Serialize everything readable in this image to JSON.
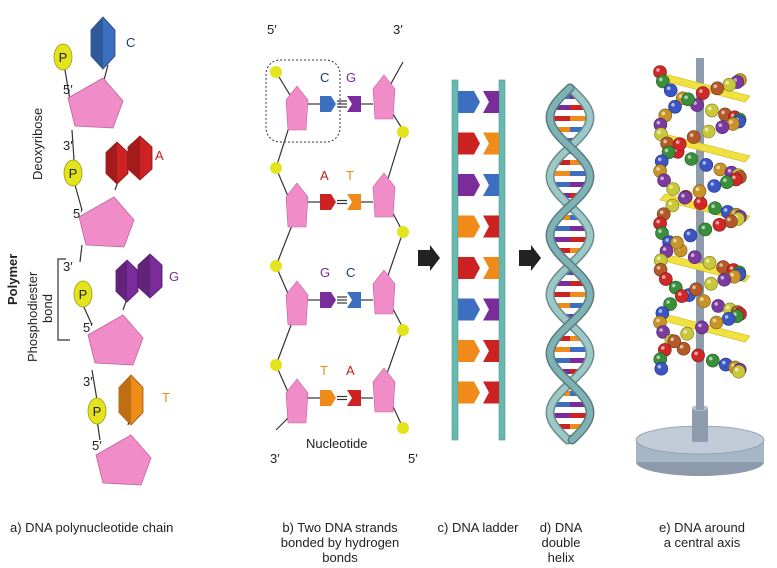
{
  "colors": {
    "sugar": "#f08cc8",
    "phosphate": "#e4e41e",
    "cytosine": "#3c6fc0",
    "guanine": "#7a2c9a",
    "adenine": "#cc2222",
    "thymine": "#f08a18",
    "ladder_rail": "#68b8b0",
    "stand": "#a7b6c6"
  },
  "panel_a": {
    "phosphate_label": "P",
    "bases": [
      "C",
      "A",
      "G",
      "T"
    ],
    "prime5": "5′",
    "prime3": "3′",
    "deoxyribose": "Deoxyribose",
    "polymer": "Polymer",
    "phosphodiester": "Phosphodiester",
    "bond": "bond",
    "caption": "a) DNA polynucleotide chain"
  },
  "panel_b": {
    "top_left": "5′",
    "top_right": "3′",
    "bottom_left": "3′",
    "bottom_right": "5′",
    "pairs": [
      {
        "left": "C",
        "right": "G"
      },
      {
        "left": "A",
        "right": "T"
      },
      {
        "left": "G",
        "right": "C"
      },
      {
        "left": "T",
        "right": "A"
      }
    ],
    "nucleotide": "Nucleotide",
    "caption_lines": [
      "b) Two DNA strands",
      "bonded by hydrogen",
      "bonds"
    ]
  },
  "panel_c": {
    "caption": "c) DNA ladder"
  },
  "panel_d": {
    "caption_lines": [
      "d) DNA",
      "double",
      "helix"
    ]
  },
  "panel_e": {
    "caption_lines": [
      "e) DNA around",
      "a central axis"
    ]
  }
}
